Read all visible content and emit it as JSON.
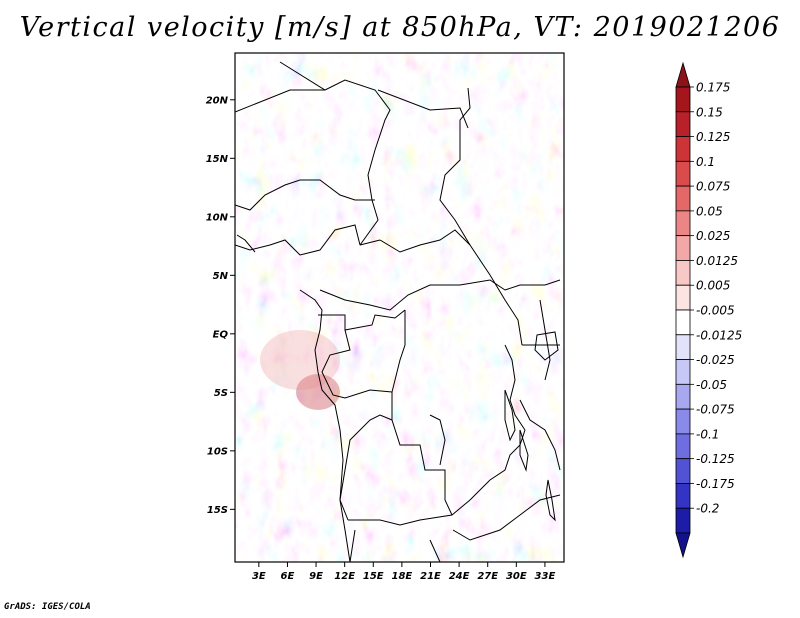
{
  "title": "Vertical velocity [m/s] at 850hPa, VT: 2019021206",
  "credit": "GrADS: IGES/COLA",
  "chart_data": {
    "type": "heatmap",
    "title": "Vertical velocity [m/s] at 850hPa, VT: 2019021206",
    "variable": "Vertical velocity",
    "units": "m/s",
    "level": "850hPa",
    "valid_time": "2019021206",
    "xlabel": "",
    "ylabel": "",
    "x_range_deg_lon": [
      0.5,
      35
    ],
    "y_range_deg_lat": [
      -19.5,
      24
    ],
    "x_ticks": [
      {
        "value": 3,
        "label": "3E"
      },
      {
        "value": 6,
        "label": "6E"
      },
      {
        "value": 9,
        "label": "9E"
      },
      {
        "value": 12,
        "label": "12E"
      },
      {
        "value": 15,
        "label": "15E"
      },
      {
        "value": 18,
        "label": "18E"
      },
      {
        "value": 21,
        "label": "21E"
      },
      {
        "value": 24,
        "label": "24E"
      },
      {
        "value": 27,
        "label": "27E"
      },
      {
        "value": 30,
        "label": "30E"
      },
      {
        "value": 33,
        "label": "33E"
      }
    ],
    "y_ticks": [
      {
        "value": 20,
        "label": "20N"
      },
      {
        "value": 15,
        "label": "15N"
      },
      {
        "value": 10,
        "label": "10N"
      },
      {
        "value": 5,
        "label": "5N"
      },
      {
        "value": 0,
        "label": "EQ"
      },
      {
        "value": -5,
        "label": "5S"
      },
      {
        "value": -10,
        "label": "10S"
      },
      {
        "value": -15,
        "label": "15S"
      }
    ],
    "colorbar": [
      {
        "label": "0.175",
        "color": "#a5151c"
      },
      {
        "label": "0.15",
        "color": "#b8202a"
      },
      {
        "label": "0.125",
        "color": "#cc3438"
      },
      {
        "label": "0.1",
        "color": "#da4c4c"
      },
      {
        "label": "0.075",
        "color": "#e46868"
      },
      {
        "label": "0.05",
        "color": "#ec8686"
      },
      {
        "label": "0.025",
        "color": "#f3a8a8"
      },
      {
        "label": "0.0125",
        "color": "#f8c8c6"
      },
      {
        "label": "0.005",
        "color": "#fce4e2"
      },
      {
        "label": "-0.005",
        "color": "#ffffff"
      },
      {
        "label": "-0.0125",
        "color": "#e2e2fb"
      },
      {
        "label": "-0.025",
        "color": "#c8c8f6"
      },
      {
        "label": "-0.05",
        "color": "#a8a8f0"
      },
      {
        "label": "-0.075",
        "color": "#8a8ae8"
      },
      {
        "label": "-0.1",
        "color": "#6e6ee0"
      },
      {
        "label": "-0.125",
        "color": "#5252d4"
      },
      {
        "label": "-0.175",
        "color": "#3434c4"
      },
      {
        "label": "-0.2",
        "color": "#1c1ca8"
      }
    ],
    "colorbar_extremes": {
      "top": "#8c1418",
      "bottom": "#12128c"
    }
  }
}
